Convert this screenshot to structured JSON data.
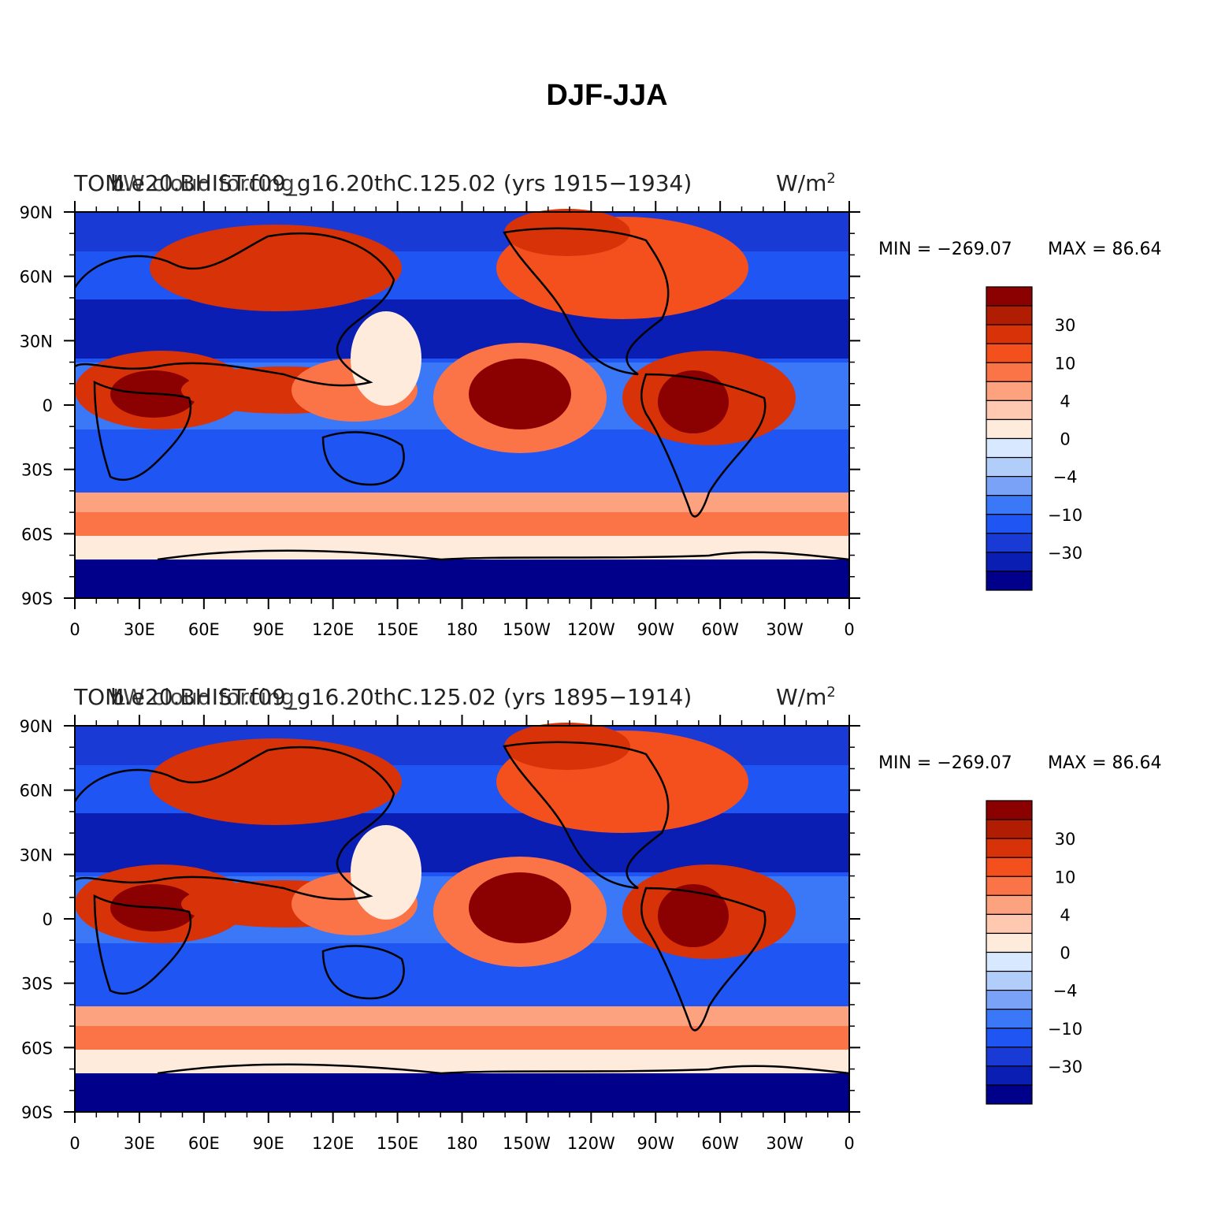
{
  "title": "DJF-JJA",
  "colors": {
    "scale": [
      "#00008b",
      "#0a1eb4",
      "#1a3ad6",
      "#1f55f2",
      "#3b78f7",
      "#7aa3f7",
      "#b1cdfa",
      "#d8e9ff",
      "#ffebdc",
      "#fec8b1",
      "#fca27e",
      "#fb7448",
      "#f4501e",
      "#d83209",
      "#b01d03",
      "#8b0000"
    ]
  },
  "colorbar_labels": [
    "30",
    "10",
    "4",
    "0",
    "−4",
    "−10",
    "−30"
  ],
  "axes": {
    "lat_labels": [
      "90N",
      "60N",
      "30N",
      "0",
      "30S",
      "60S",
      "90S"
    ],
    "lon_labels": [
      "0",
      "30E",
      "60E",
      "90E",
      "120E",
      "150E",
      "180",
      "150W",
      "120W",
      "90W",
      "60W",
      "30W",
      "0"
    ]
  },
  "panels": [
    {
      "left_title": "TOM",
      "case_title": "b.e20.BHIST.f09_g16.20thC.125.02 (yrs 1915−1934)",
      "subtitle": "LW cloud forcing",
      "units": "W/m",
      "units_sup": "2",
      "min_label": "MIN = −269.07",
      "max_label": "MAX =   86.64"
    },
    {
      "left_title": "TOM",
      "case_title": "b.e20.BHIST.f09_g16.20thC.125.02 (yrs 1895−1914)",
      "subtitle": "LW cloud forcing",
      "units": "W/m",
      "units_sup": "2",
      "min_label": "MIN = −269.07",
      "max_label": "MAX =   86.64"
    }
  ]
}
